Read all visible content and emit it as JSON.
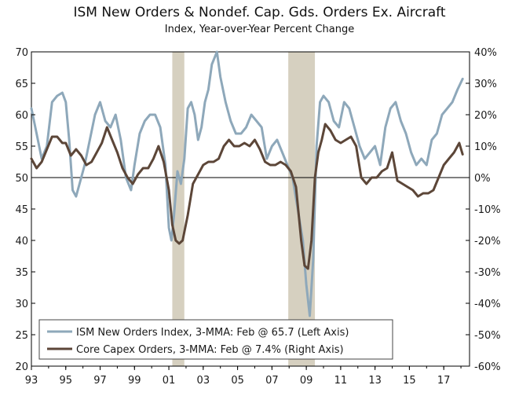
{
  "chart_data": {
    "type": "line",
    "title": "ISM New Orders & Nondef. Cap. Gds. Orders Ex. Aircraft",
    "subtitle": "Index, Year-over-Year Percent Change",
    "x_range": [
      1993.0,
      2018.5
    ],
    "x_tick_values": [
      1993,
      1995,
      1997,
      1999,
      2001,
      2003,
      2005,
      2007,
      2009,
      2011,
      2013,
      2015,
      2017
    ],
    "x_tick_labels": [
      "93",
      "95",
      "97",
      "99",
      "01",
      "03",
      "05",
      "07",
      "09",
      "11",
      "13",
      "15",
      "17"
    ],
    "y_left": {
      "min": 20,
      "max": 70,
      "ticks": [
        20,
        25,
        30,
        35,
        40,
        45,
        50,
        55,
        60,
        65,
        70
      ],
      "labels": [
        "20",
        "25",
        "30",
        "35",
        "40",
        "45",
        "50",
        "55",
        "60",
        "65",
        "70"
      ]
    },
    "y_right": {
      "min": -60,
      "max": 40,
      "ticks": [
        -60,
        -50,
        -40,
        -30,
        -20,
        -10,
        0,
        10,
        20,
        30,
        40
      ],
      "labels": [
        "-60%",
        "-50%",
        "-40%",
        "-30%",
        "-20%",
        "-10%",
        "0%",
        "10%",
        "20%",
        "30%",
        "40%"
      ]
    },
    "recessions": [
      [
        2001.2,
        2001.9
      ],
      [
        2007.95,
        2009.5
      ]
    ],
    "reference_line_left": 50,
    "series": [
      {
        "name": "ISM New Orders Index, 3-MMA: Feb @ 65.7 (Left Axis)",
        "axis": "left",
        "color": "#8ea8ba",
        "x": [
          1993.0,
          1993.3,
          1993.6,
          1993.9,
          1994.2,
          1994.5,
          1994.8,
          1995.0,
          1995.2,
          1995.4,
          1995.6,
          1995.8,
          1996.1,
          1996.4,
          1996.7,
          1997.0,
          1997.3,
          1997.6,
          1997.9,
          1998.2,
          1998.5,
          1998.8,
          1999.0,
          1999.3,
          1999.6,
          1999.9,
          2000.2,
          2000.5,
          2000.8,
          2001.0,
          2001.15,
          2001.3,
          2001.5,
          2001.7,
          2001.9,
          2002.1,
          2002.3,
          2002.5,
          2002.7,
          2002.9,
          2003.1,
          2003.3,
          2003.5,
          2003.8,
          2004.0,
          2004.3,
          2004.6,
          2004.9,
          2005.2,
          2005.5,
          2005.8,
          2006.1,
          2006.4,
          2006.7,
          2007.0,
          2007.3,
          2007.6,
          2007.9,
          2008.2,
          2008.5,
          2008.8,
          2009.0,
          2009.2,
          2009.4,
          2009.6,
          2009.8,
          2010.0,
          2010.3,
          2010.6,
          2010.9,
          2011.2,
          2011.5,
          2011.8,
          2012.1,
          2012.4,
          2012.7,
          2013.0,
          2013.3,
          2013.6,
          2013.9,
          2014.2,
          2014.5,
          2014.8,
          2015.1,
          2015.4,
          2015.7,
          2016.0,
          2016.3,
          2016.6,
          2016.9,
          2017.2,
          2017.5,
          2017.8,
          2018.1
        ],
        "values": [
          61,
          57,
          53,
          55,
          62,
          63,
          63.5,
          62,
          56,
          48,
          47,
          49,
          52,
          56,
          60,
          62,
          59,
          58,
          60,
          56,
          50,
          48,
          52,
          57,
          59,
          60,
          60,
          58,
          52,
          42,
          40,
          44,
          51,
          49,
          53,
          61,
          62,
          60,
          56,
          58,
          62,
          64,
          68,
          70,
          66,
          62,
          59,
          57,
          57,
          58,
          60,
          59,
          58,
          53,
          55,
          56,
          54,
          52,
          50,
          45,
          40,
          33,
          28,
          37,
          55,
          62,
          63,
          62,
          59,
          58,
          62,
          61,
          58,
          55,
          53,
          54,
          55,
          52,
          58,
          61,
          62,
          59,
          57,
          54,
          52,
          53,
          52,
          56,
          57,
          60,
          61,
          62,
          64,
          65.7
        ]
      },
      {
        "name": "Core Capex Orders, 3-MMA: Feb @ 7.4% (Right Axis)",
        "axis": "right",
        "color": "#5c4638",
        "x": [
          1993.0,
          1993.3,
          1993.6,
          1993.9,
          1994.2,
          1994.5,
          1994.8,
          1995.0,
          1995.3,
          1995.6,
          1995.9,
          1996.2,
          1996.5,
          1996.8,
          1997.1,
          1997.4,
          1997.7,
          1998.0,
          1998.3,
          1998.6,
          1998.9,
          1999.2,
          1999.5,
          1999.8,
          2000.1,
          2000.4,
          2000.7,
          2001.0,
          2001.2,
          2001.4,
          2001.6,
          2001.8,
          2002.1,
          2002.4,
          2002.7,
          2003.0,
          2003.3,
          2003.6,
          2003.9,
          2004.2,
          2004.5,
          2004.8,
          2005.1,
          2005.4,
          2005.7,
          2006.0,
          2006.3,
          2006.6,
          2006.9,
          2007.2,
          2007.5,
          2007.8,
          2008.1,
          2008.4,
          2008.7,
          2008.9,
          2009.1,
          2009.3,
          2009.5,
          2009.7,
          2009.9,
          2010.1,
          2010.4,
          2010.7,
          2011.0,
          2011.3,
          2011.6,
          2011.9,
          2012.2,
          2012.5,
          2012.8,
          2013.1,
          2013.4,
          2013.7,
          2014.0,
          2014.3,
          2014.6,
          2014.9,
          2015.2,
          2015.5,
          2015.8,
          2016.1,
          2016.4,
          2016.7,
          2017.0,
          2017.3,
          2017.6,
          2017.9,
          2018.1
        ],
        "values": [
          6,
          3,
          5,
          9,
          13,
          13,
          11,
          11,
          7,
          9,
          7,
          4,
          5,
          8,
          11,
          16,
          12,
          8,
          3,
          0,
          -2,
          1,
          3,
          3,
          6,
          10,
          5,
          -4,
          -15,
          -20,
          -21,
          -20,
          -12,
          -2,
          1,
          4,
          5,
          5,
          6,
          10,
          12,
          10,
          10,
          11,
          10,
          12,
          9,
          5,
          4,
          4,
          5,
          4,
          2,
          -3,
          -20,
          -28,
          -29,
          -20,
          0,
          8,
          12,
          17,
          15,
          12,
          11,
          12,
          13,
          10,
          0,
          -2,
          0,
          0,
          2,
          3,
          8,
          -1,
          -2,
          -3,
          -4,
          -6,
          -5,
          -5,
          -4,
          0,
          4,
          6,
          8,
          11,
          7.4
        ]
      }
    ]
  }
}
